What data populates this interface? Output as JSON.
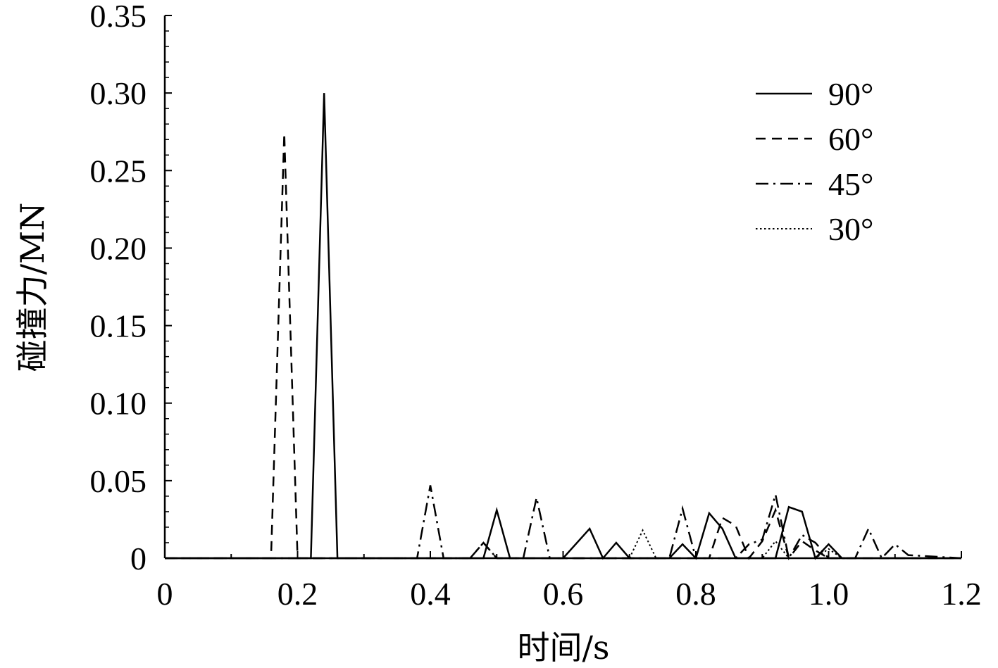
{
  "chart_data": {
    "type": "line",
    "xlabel": "时间/s",
    "ylabel": "碰撞力/MN",
    "xlim": [
      0,
      1.2
    ],
    "ylim": [
      0,
      0.35
    ],
    "x_ticks": [
      "0",
      "0.2",
      "0.4",
      "0.6",
      "0.8",
      "1.0",
      "1.2"
    ],
    "y_ticks": [
      "0",
      "0.05",
      "0.10",
      "0.15",
      "0.20",
      "0.25",
      "0.30",
      "0.35"
    ],
    "grid": false,
    "legend_position": "top-right",
    "series": [
      {
        "name": "90°",
        "dash": "solid",
        "points": [
          [
            0,
            0
          ],
          [
            0.22,
            0
          ],
          [
            0.24,
            0.3
          ],
          [
            0.26,
            0
          ],
          [
            0.48,
            0
          ],
          [
            0.5,
            0.031
          ],
          [
            0.52,
            0
          ],
          [
            0.6,
            0
          ],
          [
            0.64,
            0.019
          ],
          [
            0.66,
            0
          ],
          [
            0.68,
            0.01
          ],
          [
            0.7,
            0
          ],
          [
            0.76,
            0
          ],
          [
            0.78,
            0.009
          ],
          [
            0.8,
            0
          ],
          [
            0.82,
            0.029
          ],
          [
            0.84,
            0.019
          ],
          [
            0.86,
            0
          ],
          [
            0.92,
            0
          ],
          [
            0.94,
            0.033
          ],
          [
            0.96,
            0.03
          ],
          [
            0.98,
            0
          ],
          [
            1.0,
            0.009
          ],
          [
            1.02,
            0
          ],
          [
            1.2,
            0
          ]
        ]
      },
      {
        "name": "60°",
        "dash": "dashed",
        "points": [
          [
            0,
            0
          ],
          [
            0.16,
            0
          ],
          [
            0.18,
            0.274
          ],
          [
            0.2,
            0
          ],
          [
            0.46,
            0
          ],
          [
            0.48,
            0.01
          ],
          [
            0.5,
            0
          ],
          [
            0.82,
            0
          ],
          [
            0.84,
            0.026
          ],
          [
            0.86,
            0.021
          ],
          [
            0.88,
            0
          ],
          [
            0.9,
            0.011
          ],
          [
            0.92,
            0.031
          ],
          [
            0.94,
            0
          ],
          [
            0.96,
            0.011
          ],
          [
            0.98,
            0.005
          ],
          [
            1.0,
            0
          ],
          [
            1.2,
            0
          ]
        ]
      },
      {
        "name": "45°",
        "dash": "dashdot",
        "points": [
          [
            0,
            0
          ],
          [
            0.38,
            0
          ],
          [
            0.4,
            0.047
          ],
          [
            0.42,
            0
          ],
          [
            0.46,
            0
          ],
          [
            0.48,
            0.01
          ],
          [
            0.5,
            0
          ],
          [
            0.54,
            0
          ],
          [
            0.56,
            0.039
          ],
          [
            0.58,
            0
          ],
          [
            0.76,
            0
          ],
          [
            0.78,
            0.032
          ],
          [
            0.8,
            0
          ],
          [
            0.86,
            0
          ],
          [
            0.88,
            0.009
          ],
          [
            0.9,
            0.012
          ],
          [
            0.92,
            0.041
          ],
          [
            0.94,
            0
          ],
          [
            0.96,
            0.015
          ],
          [
            0.98,
            0.01
          ],
          [
            1.0,
            0
          ],
          [
            1.04,
            0
          ],
          [
            1.06,
            0.019
          ],
          [
            1.08,
            0
          ],
          [
            1.1,
            0.009
          ],
          [
            1.12,
            0.002
          ],
          [
            1.2,
            0
          ]
        ]
      },
      {
        "name": "30°",
        "dash": "dotted",
        "points": [
          [
            0,
            0
          ],
          [
            0.7,
            0
          ],
          [
            0.72,
            0.018
          ],
          [
            0.74,
            0
          ],
          [
            0.9,
            0
          ],
          [
            0.92,
            0.011
          ],
          [
            0.94,
            0
          ],
          [
            0.98,
            0
          ],
          [
            1.0,
            0.006
          ],
          [
            1.02,
            0
          ],
          [
            1.2,
            0
          ]
        ]
      }
    ]
  }
}
